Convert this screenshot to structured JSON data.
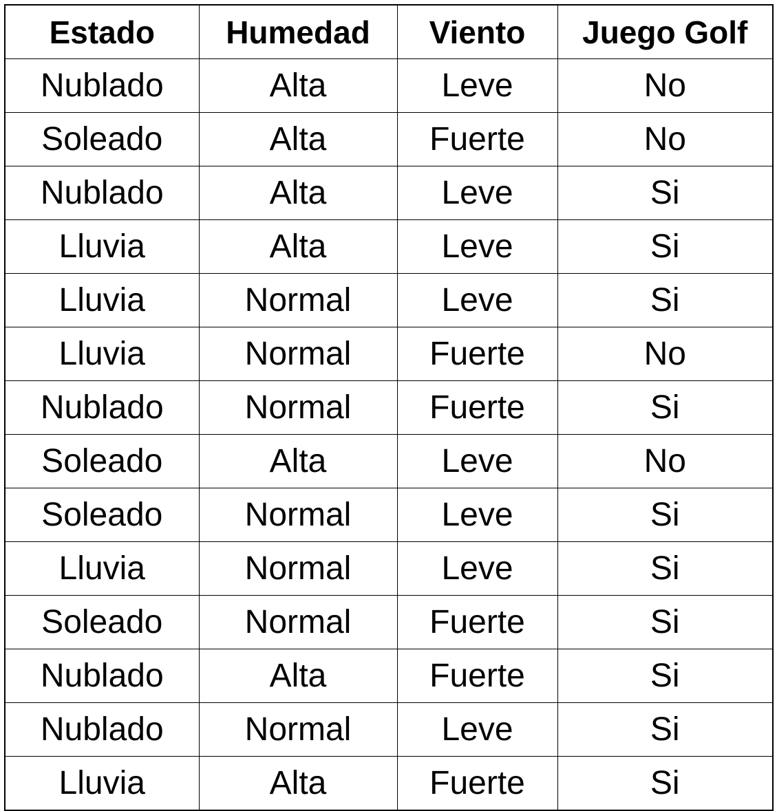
{
  "table": {
    "headers": [
      "Estado",
      "Humedad",
      "Viento",
      "Juego Golf"
    ],
    "rows": [
      [
        "Nublado",
        "Alta",
        "Leve",
        "No"
      ],
      [
        "Soleado",
        "Alta",
        "Fuerte",
        "No"
      ],
      [
        "Nublado",
        "Alta",
        "Leve",
        "Si"
      ],
      [
        "Lluvia",
        "Alta",
        "Leve",
        "Si"
      ],
      [
        "Lluvia",
        "Normal",
        "Leve",
        "Si"
      ],
      [
        "Lluvia",
        "Normal",
        "Fuerte",
        "No"
      ],
      [
        "Nublado",
        "Normal",
        "Fuerte",
        "Si"
      ],
      [
        "Soleado",
        "Alta",
        "Leve",
        "No"
      ],
      [
        "Soleado",
        "Normal",
        "Leve",
        "Si"
      ],
      [
        "Lluvia",
        "Normal",
        "Leve",
        "Si"
      ],
      [
        "Soleado",
        "Normal",
        "Fuerte",
        "Si"
      ],
      [
        "Nublado",
        "Alta",
        "Fuerte",
        "Si"
      ],
      [
        "Nublado",
        "Normal",
        "Leve",
        "Si"
      ],
      [
        "Lluvia",
        "Alta",
        "Fuerte",
        "Si"
      ]
    ]
  }
}
